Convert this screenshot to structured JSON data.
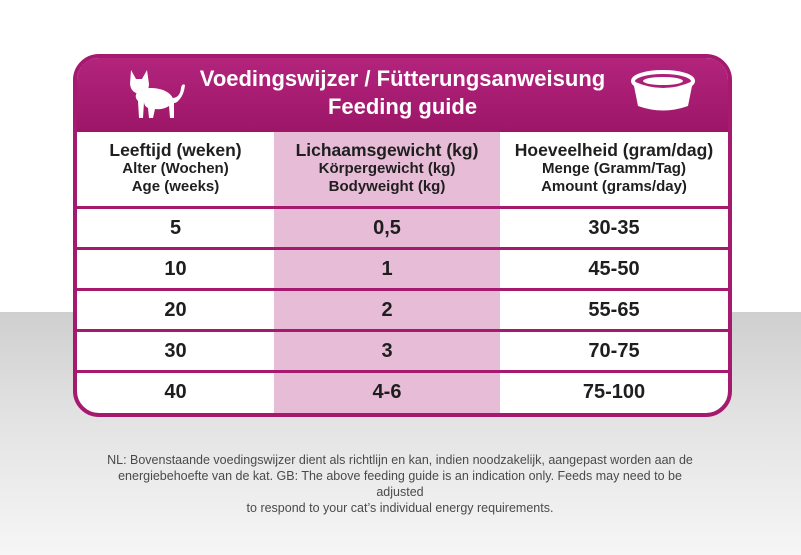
{
  "colors": {
    "accent": "#a5196f",
    "highlight_column": "#e7bcd7"
  },
  "header": {
    "title_line1": "Voedingswijzer / Fütterungsanweisung",
    "title_line2": "Feeding guide",
    "left_icon": "cat-icon",
    "right_icon": "bowl-icon"
  },
  "columns": [
    {
      "nl": "Leeftijd (weken)",
      "de": "Alter (Wochen)",
      "en": "Age (weeks)"
    },
    {
      "nl": "Lichaamsgewicht (kg)",
      "de": "Körpergewicht (kg)",
      "en": "Bodyweight (kg)"
    },
    {
      "nl": "Hoeveelheid (gram/dag)",
      "de": "Menge (Gramm/Tag)",
      "en": "Amount (grams/day)"
    }
  ],
  "rows": [
    {
      "age": "5",
      "weight": "0,5",
      "amount": "30-35"
    },
    {
      "age": "10",
      "weight": "1",
      "amount": "45-50"
    },
    {
      "age": "20",
      "weight": "2",
      "amount": "55-65"
    },
    {
      "age": "30",
      "weight": "3",
      "amount": "70-75"
    },
    {
      "age": "40",
      "weight": "4-6",
      "amount": "75-100"
    }
  ],
  "footnote": {
    "line1": "NL: Bovenstaande voedingswijzer dient als richtlijn en kan, indien noodzakelijk, aangepast worden aan de",
    "line2": "energiebehoefte van de kat. GB: The above feeding guide is an indication only. Feeds may need to be adjusted",
    "line3": "to respond to your cat’s individual energy requirements."
  }
}
